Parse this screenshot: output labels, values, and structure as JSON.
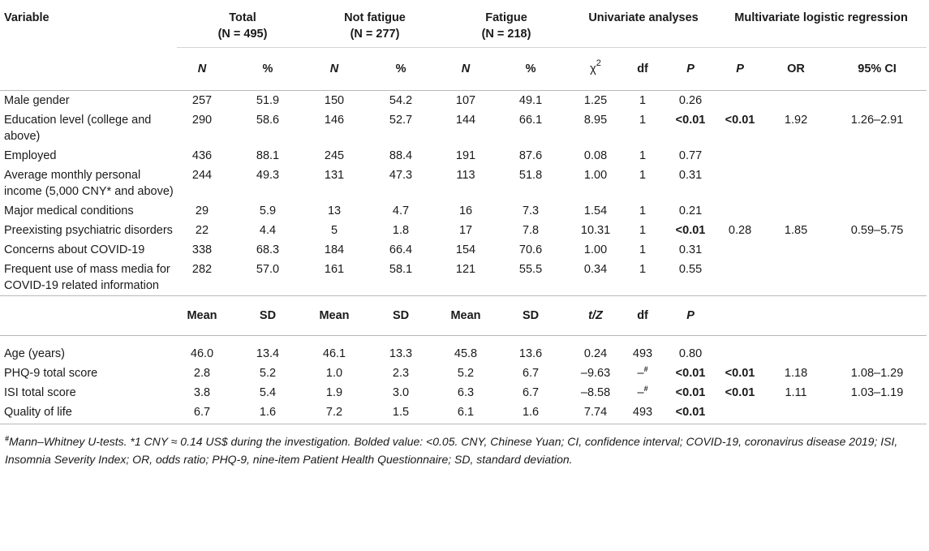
{
  "headers": {
    "variable": "Variable",
    "total": "Total",
    "total_n": "(N = 495)",
    "not_fatigue": "Not fatigue",
    "not_fatigue_n": "(N = 277)",
    "fatigue": "Fatigue",
    "fatigue_n": "(N = 218)",
    "univariate": "Univariate analyses",
    "multivariate": "Multivariate logistic regression"
  },
  "subheaders1": {
    "n1": "N",
    "p1": "%",
    "n2": "N",
    "p2": "%",
    "n3": "N",
    "p3": "%",
    "chi": "χ",
    "chi_sup": "2",
    "df": "df",
    "P": "P",
    "mP": "P",
    "or": "OR",
    "ci": "95% CI"
  },
  "subheaders2": {
    "m1": "Mean",
    "s1": "SD",
    "m2": "Mean",
    "s2": "SD",
    "m3": "Mean",
    "s3": "SD",
    "tz": "t/Z",
    "df": "df",
    "P": "P"
  },
  "rows1": [
    {
      "label": "Male gender",
      "n1": "257",
      "p1": "51.9",
      "n2": "150",
      "p2": "54.2",
      "n3": "107",
      "p3": "49.1",
      "chi": "1.25",
      "df": "1",
      "P": "0.26",
      "mP": "",
      "or": "",
      "ci": ""
    },
    {
      "label": "Education level (college and above)",
      "n1": "290",
      "p1": "58.6",
      "n2": "146",
      "p2": "52.7",
      "n3": "144",
      "p3": "66.1",
      "chi": "8.95",
      "df": "1",
      "P": "<0.01",
      "mP": "<0.01",
      "or": "1.92",
      "ci": "1.26–2.91"
    },
    {
      "label": "Employed",
      "n1": "436",
      "p1": "88.1",
      "n2": "245",
      "p2": "88.4",
      "n3": "191",
      "p3": "87.6",
      "chi": "0.08",
      "df": "1",
      "P": "0.77",
      "mP": "",
      "or": "",
      "ci": ""
    },
    {
      "label": "Average monthly personal income (5,000 CNY* and above)",
      "n1": "244",
      "p1": "49.3",
      "n2": "131",
      "p2": "47.3",
      "n3": "113",
      "p3": "51.8",
      "chi": "1.00",
      "df": "1",
      "P": "0.31",
      "mP": "",
      "or": "",
      "ci": ""
    },
    {
      "label": "Major medical conditions",
      "n1": "29",
      "p1": "5.9",
      "n2": "13",
      "p2": "4.7",
      "n3": "16",
      "p3": "7.3",
      "chi": "1.54",
      "df": "1",
      "P": "0.21",
      "mP": "",
      "or": "",
      "ci": ""
    },
    {
      "label": "Preexisting psychiatric disorders",
      "n1": "22",
      "p1": "4.4",
      "n2": "5",
      "p2": "1.8",
      "n3": "17",
      "p3": "7.8",
      "chi": "10.31",
      "df": "1",
      "P": "<0.01",
      "mP": "0.28",
      "or": "1.85",
      "ci": "0.59–5.75"
    },
    {
      "label": "Concerns about COVID-19",
      "n1": "338",
      "p1": "68.3",
      "n2": "184",
      "p2": "66.4",
      "n3": "154",
      "p3": "70.6",
      "chi": "1.00",
      "df": "1",
      "P": "0.31",
      "mP": "",
      "or": "",
      "ci": ""
    },
    {
      "label": "Frequent use of mass media for COVID-19 related information",
      "n1": "282",
      "p1": "57.0",
      "n2": "161",
      "p2": "58.1",
      "n3": "121",
      "p3": "55.5",
      "chi": "0.34",
      "df": "1",
      "P": "0.55",
      "mP": "",
      "or": "",
      "ci": ""
    }
  ],
  "rows2": [
    {
      "label": "Age (years)",
      "m1": "46.0",
      "s1": "13.4",
      "m2": "46.1",
      "s2": "13.3",
      "m3": "45.8",
      "s3": "13.6",
      "tz": "0.24",
      "df": "493",
      "P": "0.80",
      "mP": "",
      "or": "",
      "ci": ""
    },
    {
      "label": "PHQ-9 total score",
      "m1": "2.8",
      "s1": "5.2",
      "m2": "1.0",
      "s2": "2.3",
      "m3": "5.2",
      "s3": "6.7",
      "tz": "–9.63",
      "df": "–",
      "df_sup": "#",
      "P": "<0.01",
      "mP": "<0.01",
      "or": "1.18",
      "ci": "1.08–1.29"
    },
    {
      "label": "ISI total score",
      "m1": "3.8",
      "s1": "5.4",
      "m2": "1.9",
      "s2": "3.0",
      "m3": "6.3",
      "s3": "6.7",
      "tz": "–8.58",
      "df": "–",
      "df_sup": "#",
      "P": "<0.01",
      "mP": "<0.01",
      "or": "1.11",
      "ci": "1.03–1.19"
    },
    {
      "label": "Quality of life",
      "m1": "6.7",
      "s1": "1.6",
      "m2": "7.2",
      "s2": "1.5",
      "m3": "6.1",
      "s3": "1.6",
      "tz": "7.74",
      "df": "493",
      "P": "<0.01",
      "mP": "",
      "or": "",
      "ci": ""
    }
  ],
  "footnote": {
    "sup": "#",
    "text": "Mann–Whitney U-tests. *1 CNY ≈ 0.14 US$ during the investigation. Bolded value: <0.05. CNY, Chinese Yuan; CI, confidence interval; COVID-19, coronavirus disease 2019; ISI, Insomnia Severity Index; OR, odds ratio; PHQ-9, nine-item Patient Health Questionnaire; SD, standard deviation."
  }
}
